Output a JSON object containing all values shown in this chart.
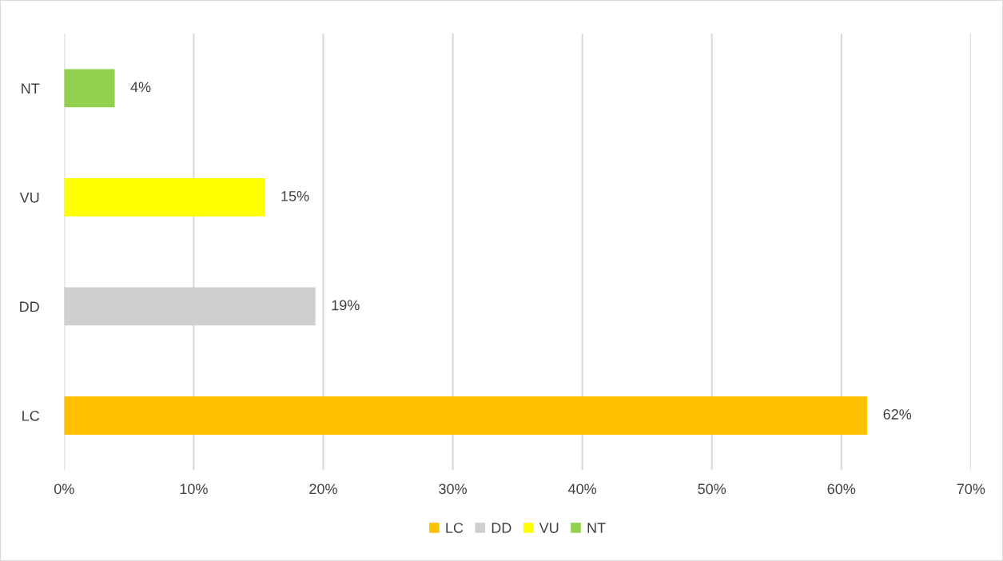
{
  "chart_data": {
    "type": "bar",
    "orientation": "horizontal",
    "categories": [
      "NT",
      "VU",
      "DD",
      "LC"
    ],
    "series": [
      {
        "name": "LC",
        "color": "#ffc000",
        "values": [
          null,
          null,
          null,
          62.0
        ],
        "value_labels": [
          null,
          null,
          null,
          "62%"
        ]
      },
      {
        "name": "DD",
        "color": "#d0cece",
        "values": [
          null,
          null,
          19.4,
          null
        ],
        "value_labels": [
          null,
          null,
          "19%",
          null
        ]
      },
      {
        "name": "VU",
        "color": "#ffff00",
        "values": [
          null,
          15.5,
          null,
          null
        ],
        "value_labels": [
          null,
          "15%",
          null,
          null
        ]
      },
      {
        "name": "NT",
        "color": "#92d050",
        "values": [
          3.9,
          null,
          null,
          null
        ],
        "value_labels": [
          "4%",
          null,
          null,
          null
        ]
      }
    ],
    "xlim": [
      0,
      70
    ],
    "xticks": [
      {
        "value": 0,
        "label": "0%"
      },
      {
        "value": 10,
        "label": "10%"
      },
      {
        "value": 20,
        "label": "20%"
      },
      {
        "value": 30,
        "label": "30%"
      },
      {
        "value": 40,
        "label": "40%"
      },
      {
        "value": 50,
        "label": "50%"
      },
      {
        "value": 60,
        "label": "60%"
      },
      {
        "value": 70,
        "label": "70%"
      }
    ],
    "grid": "x",
    "legend": "bottom"
  }
}
